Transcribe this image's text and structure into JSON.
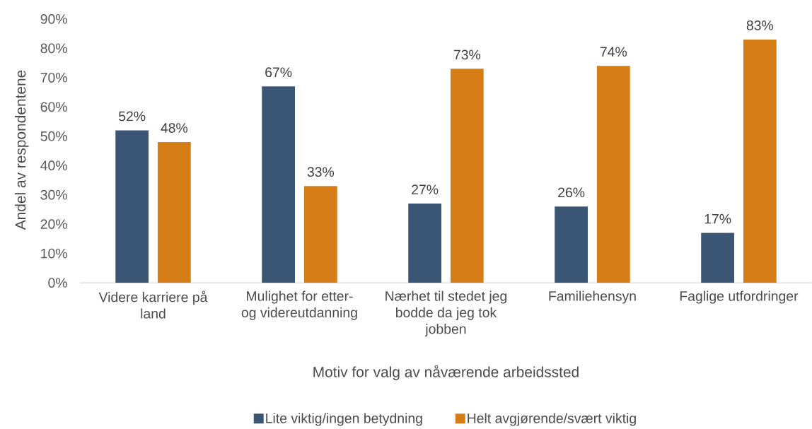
{
  "chart_data": {
    "type": "bar",
    "xlabel": "Motiv for valg av nåværende arbeidssted",
    "ylabel": "Andel av respondentene",
    "categories": [
      "Videre karriere på land",
      "Mulighet for etter- og videreutdanning",
      "Nærhet til stedet jeg bodde da jeg tok jobben",
      "Familiehensyn",
      "Faglige utfordringer"
    ],
    "series": [
      {
        "name": "Lite viktig/ingen betydning",
        "color": "#3a5674",
        "values": [
          52,
          67,
          27,
          26,
          17
        ],
        "value_labels": [
          "52%",
          "67%",
          "27%",
          "26%",
          "17%"
        ]
      },
      {
        "name": "Helt avgjørende/svært viktig",
        "color": "#d67d17",
        "values": [
          48,
          33,
          73,
          74,
          83
        ],
        "value_labels": [
          "48%",
          "33%",
          "73%",
          "74%",
          "83%"
        ]
      }
    ],
    "ylim": [
      0,
      90
    ],
    "yticks": [
      {
        "value": 0,
        "label": "0%"
      },
      {
        "value": 10,
        "label": "10%"
      },
      {
        "value": 20,
        "label": "20%"
      },
      {
        "value": 30,
        "label": "30%"
      },
      {
        "value": 40,
        "label": "40%"
      },
      {
        "value": 50,
        "label": "50%"
      },
      {
        "value": 60,
        "label": "60%"
      },
      {
        "value": 70,
        "label": "70%"
      },
      {
        "value": 80,
        "label": "80%"
      },
      {
        "value": 90,
        "label": "90%"
      }
    ],
    "legend": "bottom"
  }
}
